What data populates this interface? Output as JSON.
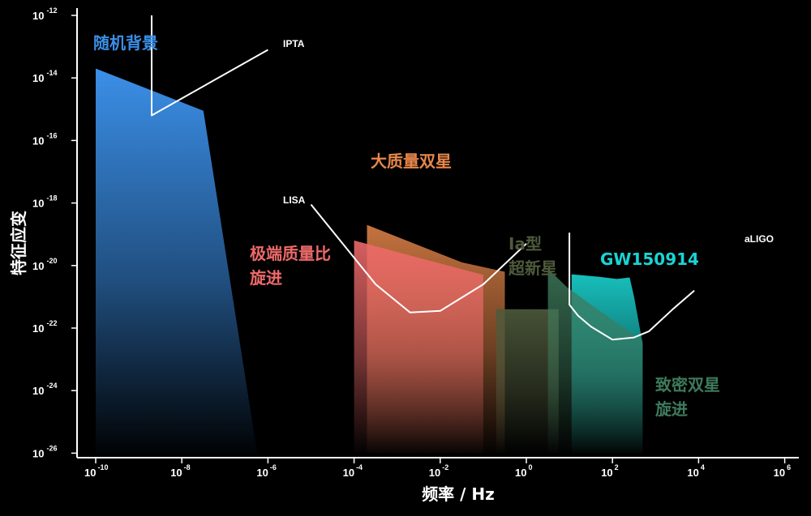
{
  "chart_data": {
    "type": "area",
    "xlabel": "频率 / Hz",
    "ylabel": "特征应变",
    "xscale": "log",
    "yscale": "log",
    "xlim": [
      1e-10,
      1000000.0
    ],
    "ylim": [
      1e-26,
      1e-12
    ],
    "grid": false,
    "x_ticks": [
      {
        "base": "10",
        "exp": "-10"
      },
      {
        "base": "10",
        "exp": "-8"
      },
      {
        "base": "10",
        "exp": "-6"
      },
      {
        "base": "10",
        "exp": "-4"
      },
      {
        "base": "10",
        "exp": "-2"
      },
      {
        "base": "10",
        "exp": "0"
      },
      {
        "base": "10",
        "exp": "2"
      },
      {
        "base": "10",
        "exp": "4"
      },
      {
        "base": "10",
        "exp": "6"
      }
    ],
    "y_ticks": [
      {
        "base": "10",
        "exp": "-12"
      },
      {
        "base": "10",
        "exp": "-14"
      },
      {
        "base": "10",
        "exp": "-16"
      },
      {
        "base": "10",
        "exp": "-18"
      },
      {
        "base": "10",
        "exp": "-20"
      },
      {
        "base": "10",
        "exp": "-22"
      },
      {
        "base": "10",
        "exp": "-24"
      },
      {
        "base": "10",
        "exp": "-26"
      }
    ],
    "regions": [
      {
        "name": "随机背景",
        "label_lines": [
          "随机背景"
        ],
        "color": "#3b8fe8",
        "polygon_log": [
          [
            -10,
            -13.7
          ],
          [
            -7.5,
            -15.05
          ],
          [
            -6.25,
            -26
          ],
          [
            -10,
            -26
          ]
        ]
      },
      {
        "name": "大质量双星",
        "label_lines": [
          "大质量双星"
        ],
        "color": "#e8874a",
        "polygon_log": [
          [
            -3.7,
            -18.7
          ],
          [
            -1.5,
            -19.9
          ],
          [
            -0.5,
            -20.2
          ],
          [
            -0.5,
            -26
          ],
          [
            -3.7,
            -26
          ]
        ]
      },
      {
        "name": "极端质量比旋进",
        "label_lines": [
          "极端质量比",
          "旋进"
        ],
        "color": "#ee6a6a",
        "polygon_log": [
          [
            -4,
            -19.2
          ],
          [
            -1,
            -20.3
          ],
          [
            -1,
            -26
          ],
          [
            -4,
            -26
          ]
        ]
      },
      {
        "name": "Ia型超新星",
        "label_lines": [
          "Ia型",
          "超新星"
        ],
        "color": "#4e5a3c",
        "polygon_log": [
          [
            -0.7,
            -21.4
          ],
          [
            0.75,
            -21.4
          ],
          [
            0.75,
            -26
          ],
          [
            -0.7,
            -26
          ]
        ]
      },
      {
        "name": "GW150914",
        "label_lines": [
          "GW150914"
        ],
        "color": "#19c9c6",
        "polygon_log": [
          [
            1.05,
            -20.28
          ],
          [
            1.7,
            -20.36
          ],
          [
            2.1,
            -20.43
          ],
          [
            2.4,
            -20.38
          ],
          [
            2.5,
            -21.0
          ],
          [
            2.7,
            -22.5
          ],
          [
            2.7,
            -26
          ],
          [
            1.05,
            -26
          ]
        ]
      },
      {
        "name": "致密双星旋进",
        "label_lines": [
          "致密双星",
          "旋进"
        ],
        "color": "#3e7a5c",
        "polygon_log": [
          [
            0.5,
            -20.1
          ],
          [
            0.95,
            -20.7
          ],
          [
            1.6,
            -21.35
          ],
          [
            2.7,
            -22.4
          ],
          [
            2.7,
            -26
          ],
          [
            0.5,
            -26
          ]
        ]
      }
    ],
    "sensitivity_curves": [
      {
        "name": "IPTA",
        "points_log": [
          [
            -8.7,
            -12
          ],
          [
            -8.7,
            -15.2
          ],
          [
            -6,
            -13.1
          ]
        ]
      },
      {
        "name": "LISA",
        "points_log": [
          [
            -5,
            -18.05
          ],
          [
            -3.5,
            -20.6
          ],
          [
            -2.7,
            -21.5
          ],
          [
            -2,
            -21.45
          ],
          [
            -1,
            -20.6
          ],
          [
            0,
            -19.3
          ]
        ]
      },
      {
        "name": "aLIGO",
        "points_log": [
          [
            1,
            -18.95
          ],
          [
            1,
            -21.25
          ],
          [
            1.2,
            -21.6
          ],
          [
            1.5,
            -21.95
          ],
          [
            2,
            -22.37
          ],
          [
            2.5,
            -22.3
          ],
          [
            2.85,
            -22.1
          ],
          [
            3.4,
            -21.4
          ],
          [
            3.9,
            -20.8
          ]
        ]
      }
    ]
  }
}
